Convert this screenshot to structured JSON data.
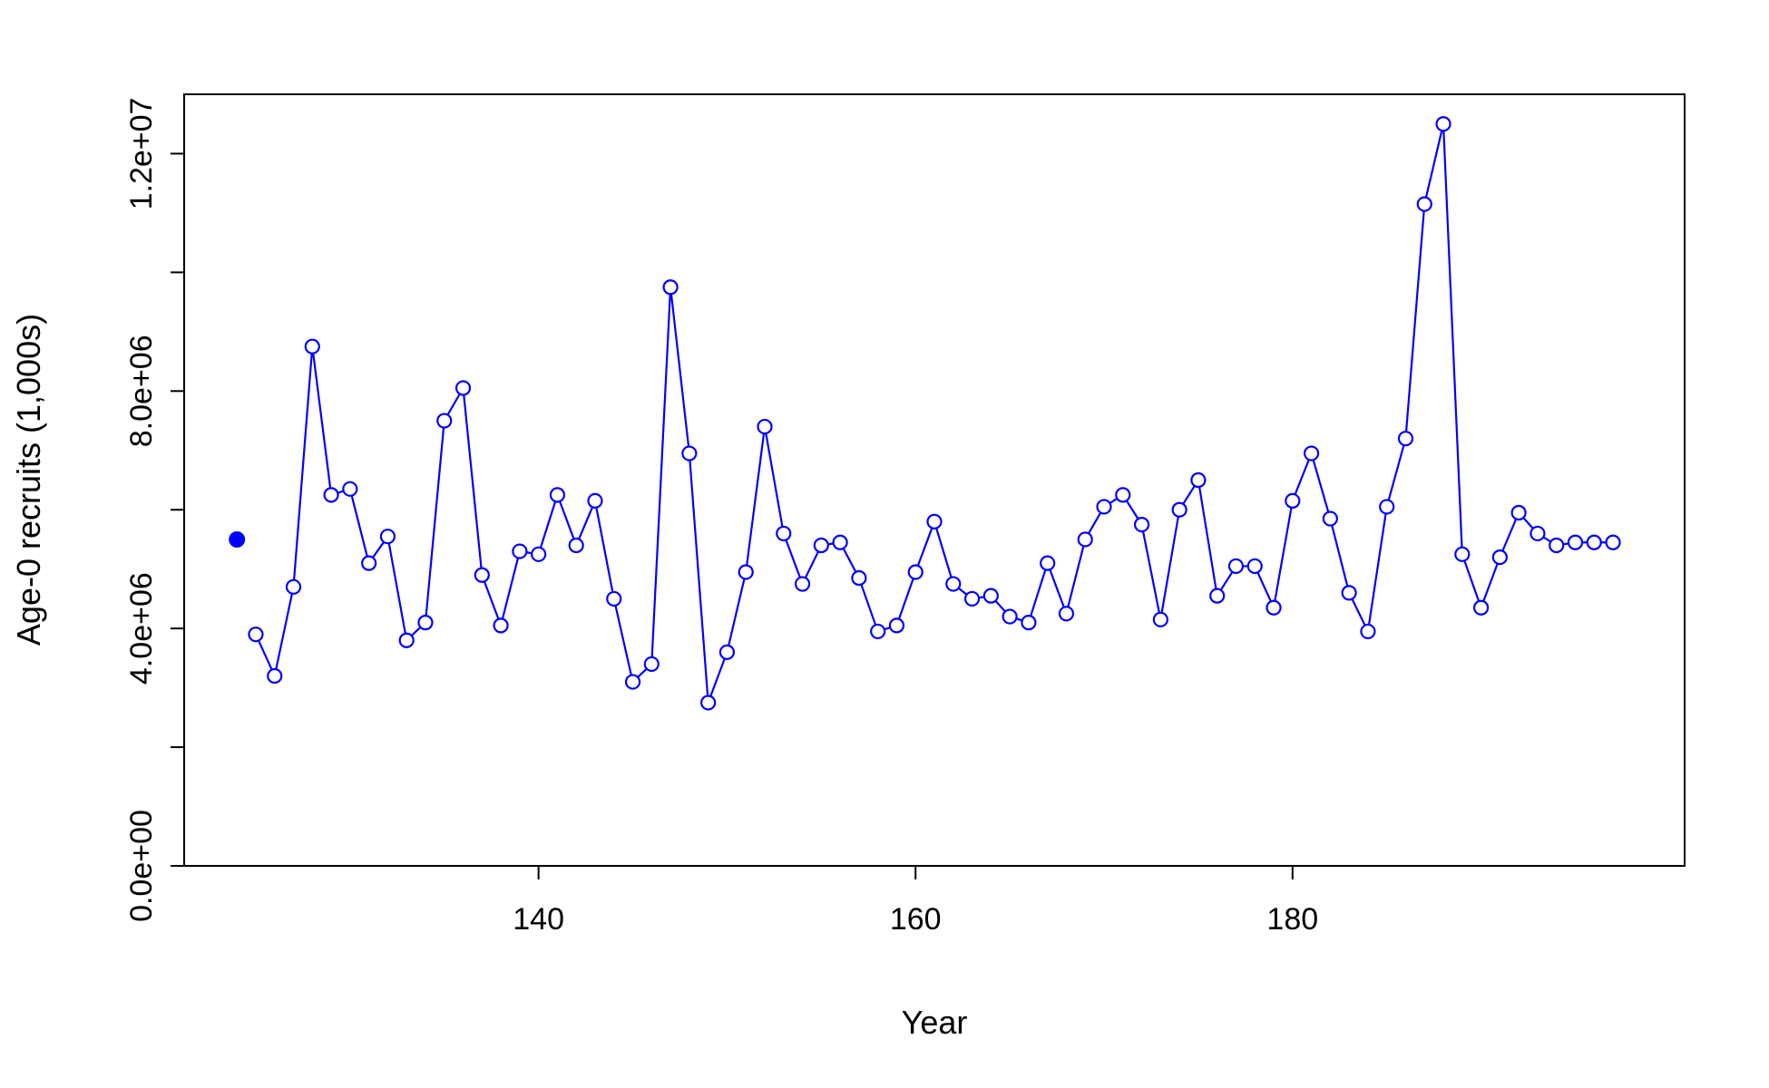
{
  "chart_data": {
    "type": "line",
    "xlabel": "Year",
    "ylabel": "Age-0 recruits (1,000s)",
    "xlim": [
      121.2,
      200.8
    ],
    "ylim": [
      0,
      13000000
    ],
    "x_ticks": [
      140,
      160,
      180
    ],
    "x_tick_labels": [
      "140",
      "160",
      "180"
    ],
    "y_ticks": [
      0,
      2000000,
      4000000,
      6000000,
      8000000,
      10000000,
      12000000
    ],
    "y_tick_labels": [
      "0.0e+00",
      "",
      "4.0e+06",
      "",
      "8.0e+06",
      "",
      "1.2e+07"
    ],
    "color": "#0000FF",
    "grid": false,
    "virgin_point": {
      "x": 124,
      "y": 5500000
    },
    "series": [
      {
        "x": [
          125,
          126,
          127,
          128,
          129,
          130,
          131,
          132,
          133,
          134,
          135,
          136,
          137,
          138,
          139,
          140,
          141,
          142,
          143,
          144,
          145,
          146,
          147,
          148,
          149,
          150,
          151,
          152,
          153,
          154,
          155,
          156,
          157,
          158,
          159,
          160,
          161,
          162,
          163,
          164,
          165,
          166,
          167,
          168,
          169,
          170,
          171,
          172,
          173,
          174,
          175,
          176,
          177,
          178,
          179,
          180,
          181,
          182,
          183,
          184,
          185,
          186,
          187,
          188,
          189,
          190,
          191,
          192,
          193,
          194,
          195,
          196,
          197
        ],
        "y": [
          3900000,
          3200000,
          4700000,
          8750000,
          6250000,
          6350000,
          5100000,
          5550000,
          3800000,
          4100000,
          7500000,
          8050000,
          4900000,
          4050000,
          5300000,
          5250000,
          6250000,
          5400000,
          6150000,
          4500000,
          3100000,
          3400000,
          9750000,
          6950000,
          2750000,
          3600000,
          4950000,
          7400000,
          5600000,
          4750000,
          5400000,
          5450000,
          4850000,
          3950000,
          4050000,
          4950000,
          5800000,
          4750000,
          4500000,
          4550000,
          4200000,
          4100000,
          5100000,
          4250000,
          5500000,
          6050000,
          6250000,
          5750000,
          4150000,
          6000000,
          6500000,
          4550000,
          5050000,
          5050000,
          4350000,
          6150000,
          6950000,
          5850000,
          4600000,
          3950000,
          6050000,
          7200000,
          11150000,
          12500000,
          5250000,
          4350000,
          5200000,
          5950000,
          5600000,
          5400000,
          5450000,
          5450000,
          5450000
        ]
      }
    ]
  }
}
